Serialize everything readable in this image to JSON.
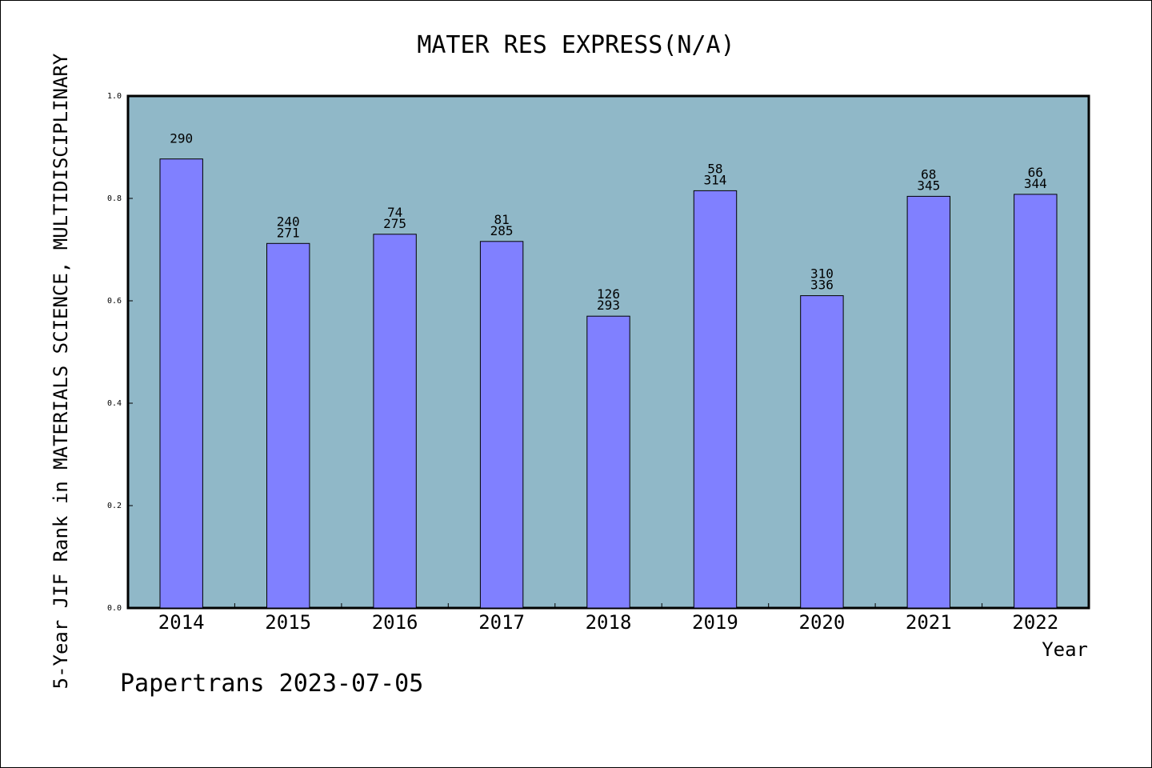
{
  "chart_data": {
    "type": "bar",
    "title": "MATER RES EXPRESS(N/A)",
    "xlabel": "Year",
    "ylabel": "5-Year JIF Rank in MATERIALS SCIENCE, MULTIDISCIPLINARY",
    "categories": [
      "2014",
      "2015",
      "2016",
      "2017",
      "2018",
      "2019",
      "2020",
      "2021",
      "2022"
    ],
    "values": [
      0.877,
      0.712,
      0.73,
      0.716,
      0.57,
      0.815,
      0.61,
      0.804,
      0.808
    ],
    "bar_labels": [
      [
        "290"
      ],
      [
        "240",
        "271"
      ],
      [
        "74",
        "275"
      ],
      [
        "81",
        "285"
      ],
      [
        "126",
        "293"
      ],
      [
        "58",
        "314"
      ],
      [
        "310",
        "336"
      ],
      [
        "68",
        "345"
      ],
      [
        "66",
        "344"
      ]
    ],
    "yticks": [
      "0.0",
      "0.2",
      "0.4",
      "0.6",
      "0.8",
      "1.0"
    ],
    "ylim": [
      0,
      1
    ],
    "grid": false,
    "colors": {
      "bar_fill": "#8080ff",
      "plot_background": "#90b8c8",
      "axis": "#000000"
    }
  },
  "footer": {
    "text": "Papertrans 2023-07-05"
  }
}
